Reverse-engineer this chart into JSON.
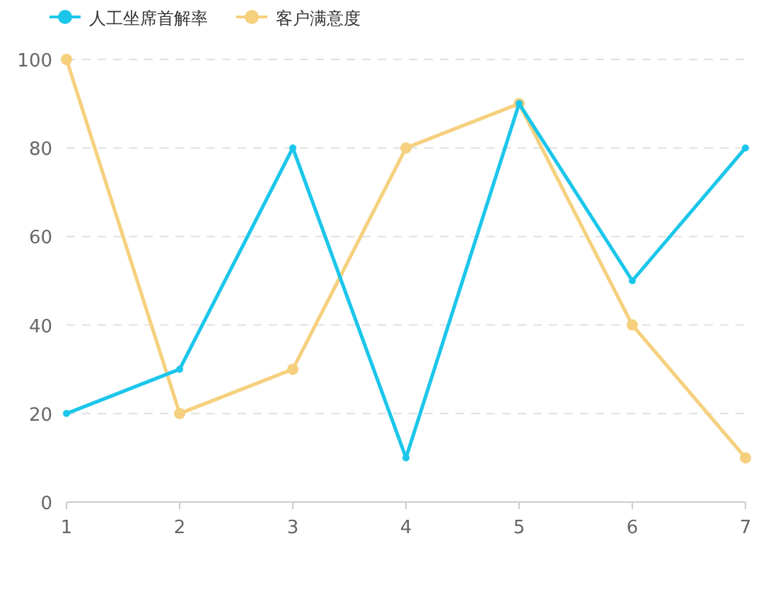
{
  "chart_data": {
    "type": "line",
    "x": [
      1,
      2,
      3,
      4,
      5,
      6,
      7
    ],
    "xlim": [
      1,
      7
    ],
    "xticks": [
      1,
      2,
      3,
      4,
      5,
      6,
      7
    ],
    "ylim": [
      0,
      100
    ],
    "yticks": [
      0,
      20,
      40,
      60,
      80,
      100
    ],
    "grid": "y",
    "legend": "top left",
    "marker": "circle",
    "line_style": "solid",
    "series": [
      {
        "name": "人工坐席首解率",
        "color": "#1bc6ea",
        "values": [
          20,
          30,
          80,
          10,
          90,
          50,
          80
        ]
      },
      {
        "name": "客户满意度",
        "color": "#f5d07e",
        "values": [
          100,
          20,
          30,
          80,
          90,
          40,
          10
        ]
      }
    ]
  }
}
